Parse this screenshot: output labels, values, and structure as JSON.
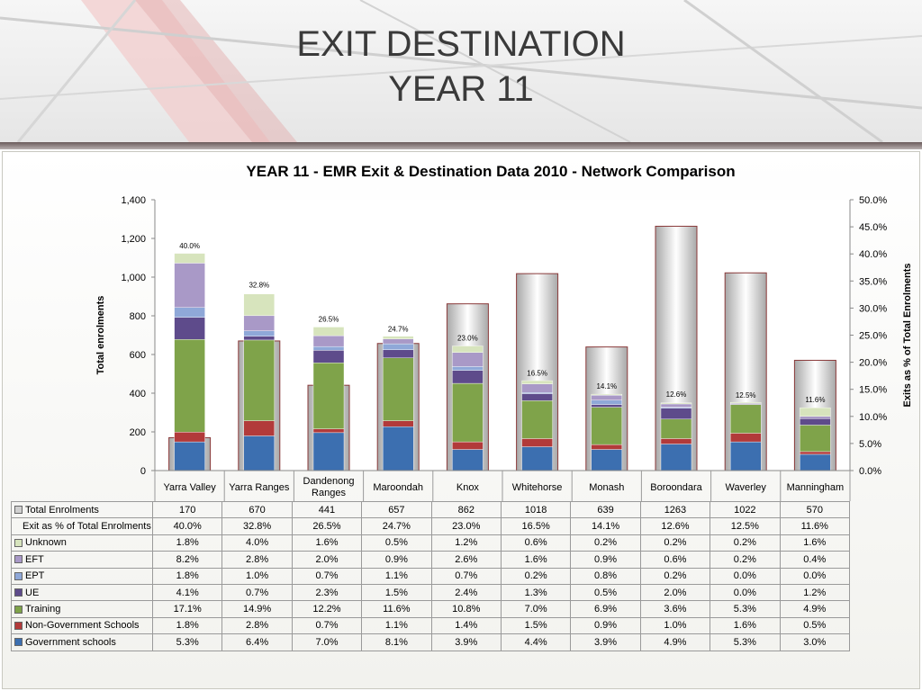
{
  "slide": {
    "title_line1": "EXIT DESTINATION",
    "title_line2": "YEAR 11"
  },
  "chart_data": {
    "type": "bar",
    "title": "YEAR 11 - EMR Exit & Destination Data 2010 - Network Comparison",
    "ylabel_left": "Total enrolments",
    "ylabel_right": "Exits as % of Total Enrolments",
    "ylim_left": [
      0,
      1400
    ],
    "ylim_right": [
      0,
      50
    ],
    "yticks_left": [
      "0",
      "200",
      "400",
      "600",
      "800",
      "1,000",
      "1,200",
      "1,400"
    ],
    "yticks_right": [
      "0.0%",
      "5.0%",
      "10.0%",
      "15.0%",
      "20.0%",
      "25.0%",
      "30.0%",
      "35.0%",
      "40.0%",
      "45.0%",
      "50.0%"
    ],
    "categories": [
      "Yarra Valley",
      "Yarra Ranges",
      "Dandenong Ranges",
      "Maroondah",
      "Knox",
      "Whitehorse",
      "Monash",
      "Boroondara",
      "Waverley",
      "Manningham"
    ],
    "total_enrolments": {
      "name": "Total Enrolments",
      "color": "#d0d0d0",
      "values": [
        170,
        670,
        441,
        657,
        862,
        1018,
        639,
        1263,
        1022,
        570
      ]
    },
    "exit_percent": {
      "name": "Exit as % of Total Enrolments",
      "values": [
        40.0,
        32.8,
        26.5,
        24.7,
        23.0,
        16.5,
        14.1,
        12.6,
        12.5,
        11.6
      ],
      "labels": [
        "40.0%",
        "32.8%",
        "26.5%",
        "24.7%",
        "23.0%",
        "16.5%",
        "14.1%",
        "12.6%",
        "12.5%",
        "11.6%"
      ]
    },
    "series": [
      {
        "name": "Unknown",
        "color": "#d7e4bd",
        "values": [
          1.8,
          4.0,
          1.6,
          0.5,
          1.2,
          0.6,
          0.2,
          0.2,
          0.2,
          1.6
        ],
        "labels": [
          "1.8%",
          "4.0%",
          "1.6%",
          "0.5%",
          "1.2%",
          "0.6%",
          "0.2%",
          "0.2%",
          "0.2%",
          "1.6%"
        ]
      },
      {
        "name": "EFT",
        "color": "#a999c7",
        "values": [
          8.2,
          2.8,
          2.0,
          0.9,
          2.6,
          1.6,
          0.9,
          0.6,
          0.2,
          0.4
        ],
        "labels": [
          "8.2%",
          "2.8%",
          "2.0%",
          "0.9%",
          "2.6%",
          "1.6%",
          "0.9%",
          "0.6%",
          "0.2%",
          "0.4%"
        ]
      },
      {
        "name": "EPT",
        "color": "#8fa8d8",
        "values": [
          1.8,
          1.0,
          0.7,
          1.1,
          0.7,
          0.2,
          0.8,
          0.2,
          0.0,
          0.0
        ],
        "labels": [
          "1.8%",
          "1.0%",
          "0.7%",
          "1.1%",
          "0.7%",
          "0.2%",
          "0.8%",
          "0.2%",
          "0.0%",
          "0.0%"
        ]
      },
      {
        "name": "UE",
        "color": "#5e4b8b",
        "values": [
          4.1,
          0.7,
          2.3,
          1.5,
          2.4,
          1.3,
          0.5,
          2.0,
          0.0,
          1.2
        ],
        "labels": [
          "4.1%",
          "0.7%",
          "2.3%",
          "1.5%",
          "2.4%",
          "1.3%",
          "0.5%",
          "2.0%",
          "0.0%",
          "1.2%"
        ]
      },
      {
        "name": "Training",
        "color": "#7fa34a",
        "values": [
          17.1,
          14.9,
          12.2,
          11.6,
          10.8,
          7.0,
          6.9,
          3.6,
          5.3,
          4.9
        ],
        "labels": [
          "17.1%",
          "14.9%",
          "12.2%",
          "11.6%",
          "10.8%",
          "7.0%",
          "6.9%",
          "3.6%",
          "5.3%",
          "4.9%"
        ]
      },
      {
        "name": "Non-Government Schools",
        "color": "#b23a3a",
        "values": [
          1.8,
          2.8,
          0.7,
          1.1,
          1.4,
          1.5,
          0.9,
          1.0,
          1.6,
          0.5
        ],
        "labels": [
          "1.8%",
          "2.8%",
          "0.7%",
          "1.1%",
          "1.4%",
          "1.5%",
          "0.9%",
          "1.0%",
          "1.6%",
          "0.5%"
        ]
      },
      {
        "name": "Government schools",
        "color": "#3c6fb0",
        "values": [
          5.3,
          6.4,
          7.0,
          8.1,
          3.9,
          4.4,
          3.9,
          4.9,
          5.3,
          3.0
        ],
        "labels": [
          "5.3%",
          "6.4%",
          "7.0%",
          "8.1%",
          "3.9%",
          "4.4%",
          "3.9%",
          "4.9%",
          "5.3%",
          "3.0%"
        ]
      }
    ],
    "legend": "table-below",
    "grid": false
  }
}
